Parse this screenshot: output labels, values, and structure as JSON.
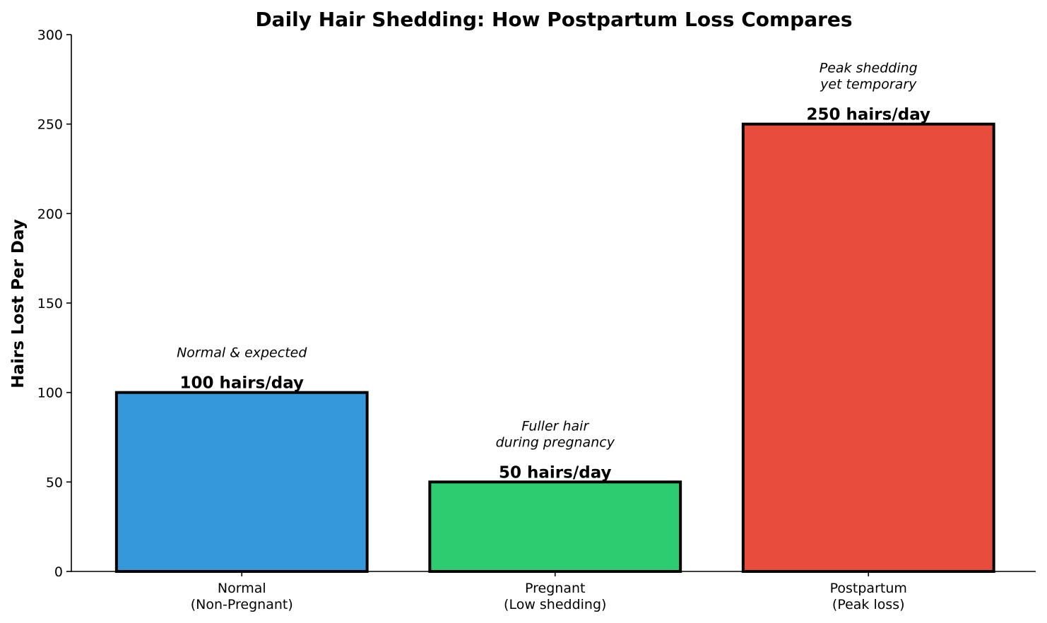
{
  "chart_data": {
    "type": "bar",
    "title": "Daily Hair Shedding: How Postpartum Loss Compares",
    "xlabel": "",
    "ylabel": "Hairs Lost Per Day",
    "ylim": [
      0,
      300
    ],
    "yticks": [
      0,
      50,
      100,
      150,
      200,
      250,
      300
    ],
    "grid": false,
    "categories": [
      [
        "Normal",
        "(Non-Pregnant)"
      ],
      [
        "Pregnant",
        "(Low shedding)"
      ],
      [
        "Postpartum",
        "(Peak loss)"
      ]
    ],
    "values": [
      100,
      50,
      250
    ],
    "colors": [
      "#3498db",
      "#2ecc71",
      "#e74c3c"
    ],
    "value_labels": [
      "100 hairs/day",
      "50 hairs/day",
      "250 hairs/day"
    ],
    "annotations": [
      [
        "Normal & expected"
      ],
      [
        "Fuller hair",
        "during pregnancy"
      ],
      [
        "Peak shedding",
        "yet temporary"
      ]
    ]
  }
}
